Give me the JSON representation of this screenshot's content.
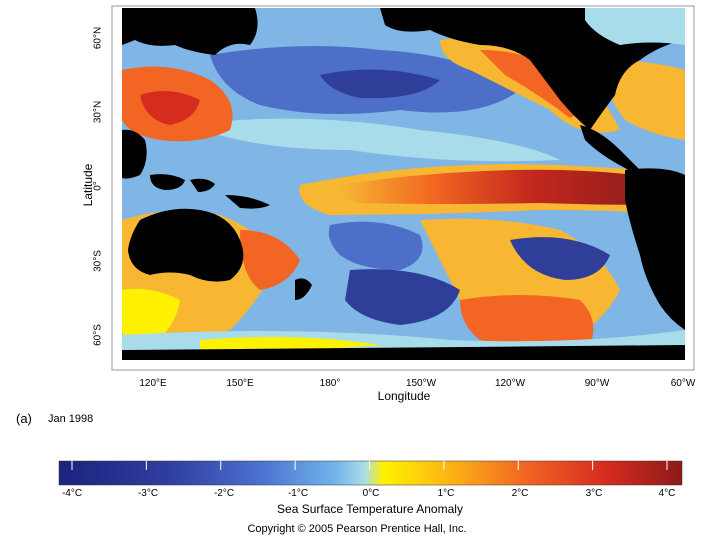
{
  "map": {
    "y_axis_label": "Latitude",
    "x_axis_label": "Longitude",
    "lat_ticks": [
      "60°N",
      "30°N",
      "0°",
      "30°S",
      "60°S"
    ],
    "lon_ticks": [
      "120°E",
      "150°E",
      "180°",
      "150°W",
      "120°W",
      "90°W",
      "60°W"
    ]
  },
  "panel": {
    "tag": "(a)",
    "date": "Jan 1998"
  },
  "colorbar": {
    "title": "Sea Surface Temperature Anomaly",
    "ticks": [
      "-4°C",
      "-3°C",
      "-2°C",
      "-1°C",
      "0°C",
      "1°C",
      "2°C",
      "3°C",
      "4°C"
    ],
    "colors": [
      "#1a237e",
      "#283593",
      "#3949ab",
      "#5c8ee6",
      "#9ed6e8",
      "#fff200",
      "#fdb813",
      "#f26522",
      "#d62b1f",
      "#8b1a1a"
    ]
  },
  "copyright": "Copyright © 2005 Pearson Prentice Hall, Inc."
}
